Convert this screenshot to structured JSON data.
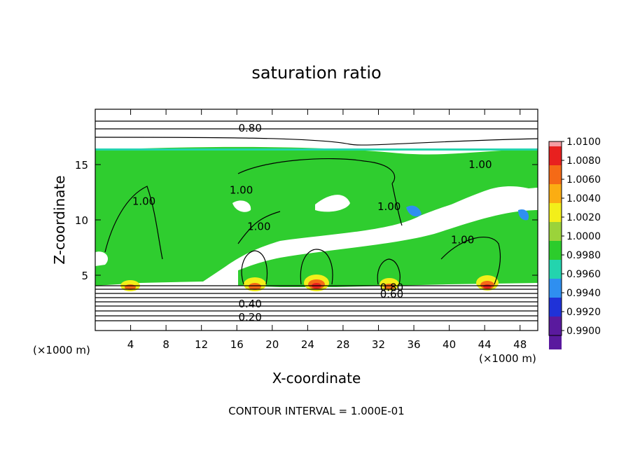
{
  "chart_data": {
    "type": "heatmap",
    "title": "saturation ratio",
    "xlabel": "X-coordinate",
    "ylabel": "Z-coordinate",
    "x_unit_left": "(×1000 m)",
    "x_unit_right": "(×1000 m)",
    "footer": "CONTOUR INTERVAL = 1.000E-01",
    "xlim": [
      0,
      50
    ],
    "ylim": [
      0,
      20
    ],
    "x_ticks": [
      4,
      8,
      12,
      16,
      20,
      24,
      28,
      32,
      36,
      40,
      44,
      48
    ],
    "y_ticks": [
      5,
      10,
      15
    ],
    "colorbar": {
      "levels": [
        "1.0100",
        "1.0080",
        "1.0060",
        "1.0040",
        "1.0020",
        "1.0000",
        "0.9980",
        "0.9960",
        "0.9940",
        "0.9920",
        "0.9900"
      ],
      "colors": [
        "#f49da3",
        "#e8201f",
        "#f56a16",
        "#fbad12",
        "#f3ef1a",
        "#9bd33a",
        "#2ccc2c",
        "#23d4ae",
        "#2f8ff0",
        "#1f32d8",
        "#5a1a9e"
      ]
    },
    "contour_labels": [
      {
        "text": "0.80",
        "x": 17.5,
        "y": 18.1
      },
      {
        "text": "0.40",
        "x": 17.5,
        "y": 2.2
      },
      {
        "text": "0.20",
        "x": 17.5,
        "y": 1.0
      },
      {
        "text": "0.80",
        "x": 33.5,
        "y": 3.7
      },
      {
        "text": "0.60",
        "x": 33.5,
        "y": 3.1
      },
      {
        "text": "1.00",
        "x": 5.5,
        "y": 11.5
      },
      {
        "text": "1.00",
        "x": 16.5,
        "y": 12.5
      },
      {
        "text": "1.00",
        "x": 18.5,
        "y": 9.2
      },
      {
        "text": "1.00",
        "x": 33.2,
        "y": 11.0
      },
      {
        "text": "1.00",
        "x": 41.5,
        "y": 8.0
      },
      {
        "text": "1.00",
        "x": 43.5,
        "y": 14.8
      }
    ]
  }
}
